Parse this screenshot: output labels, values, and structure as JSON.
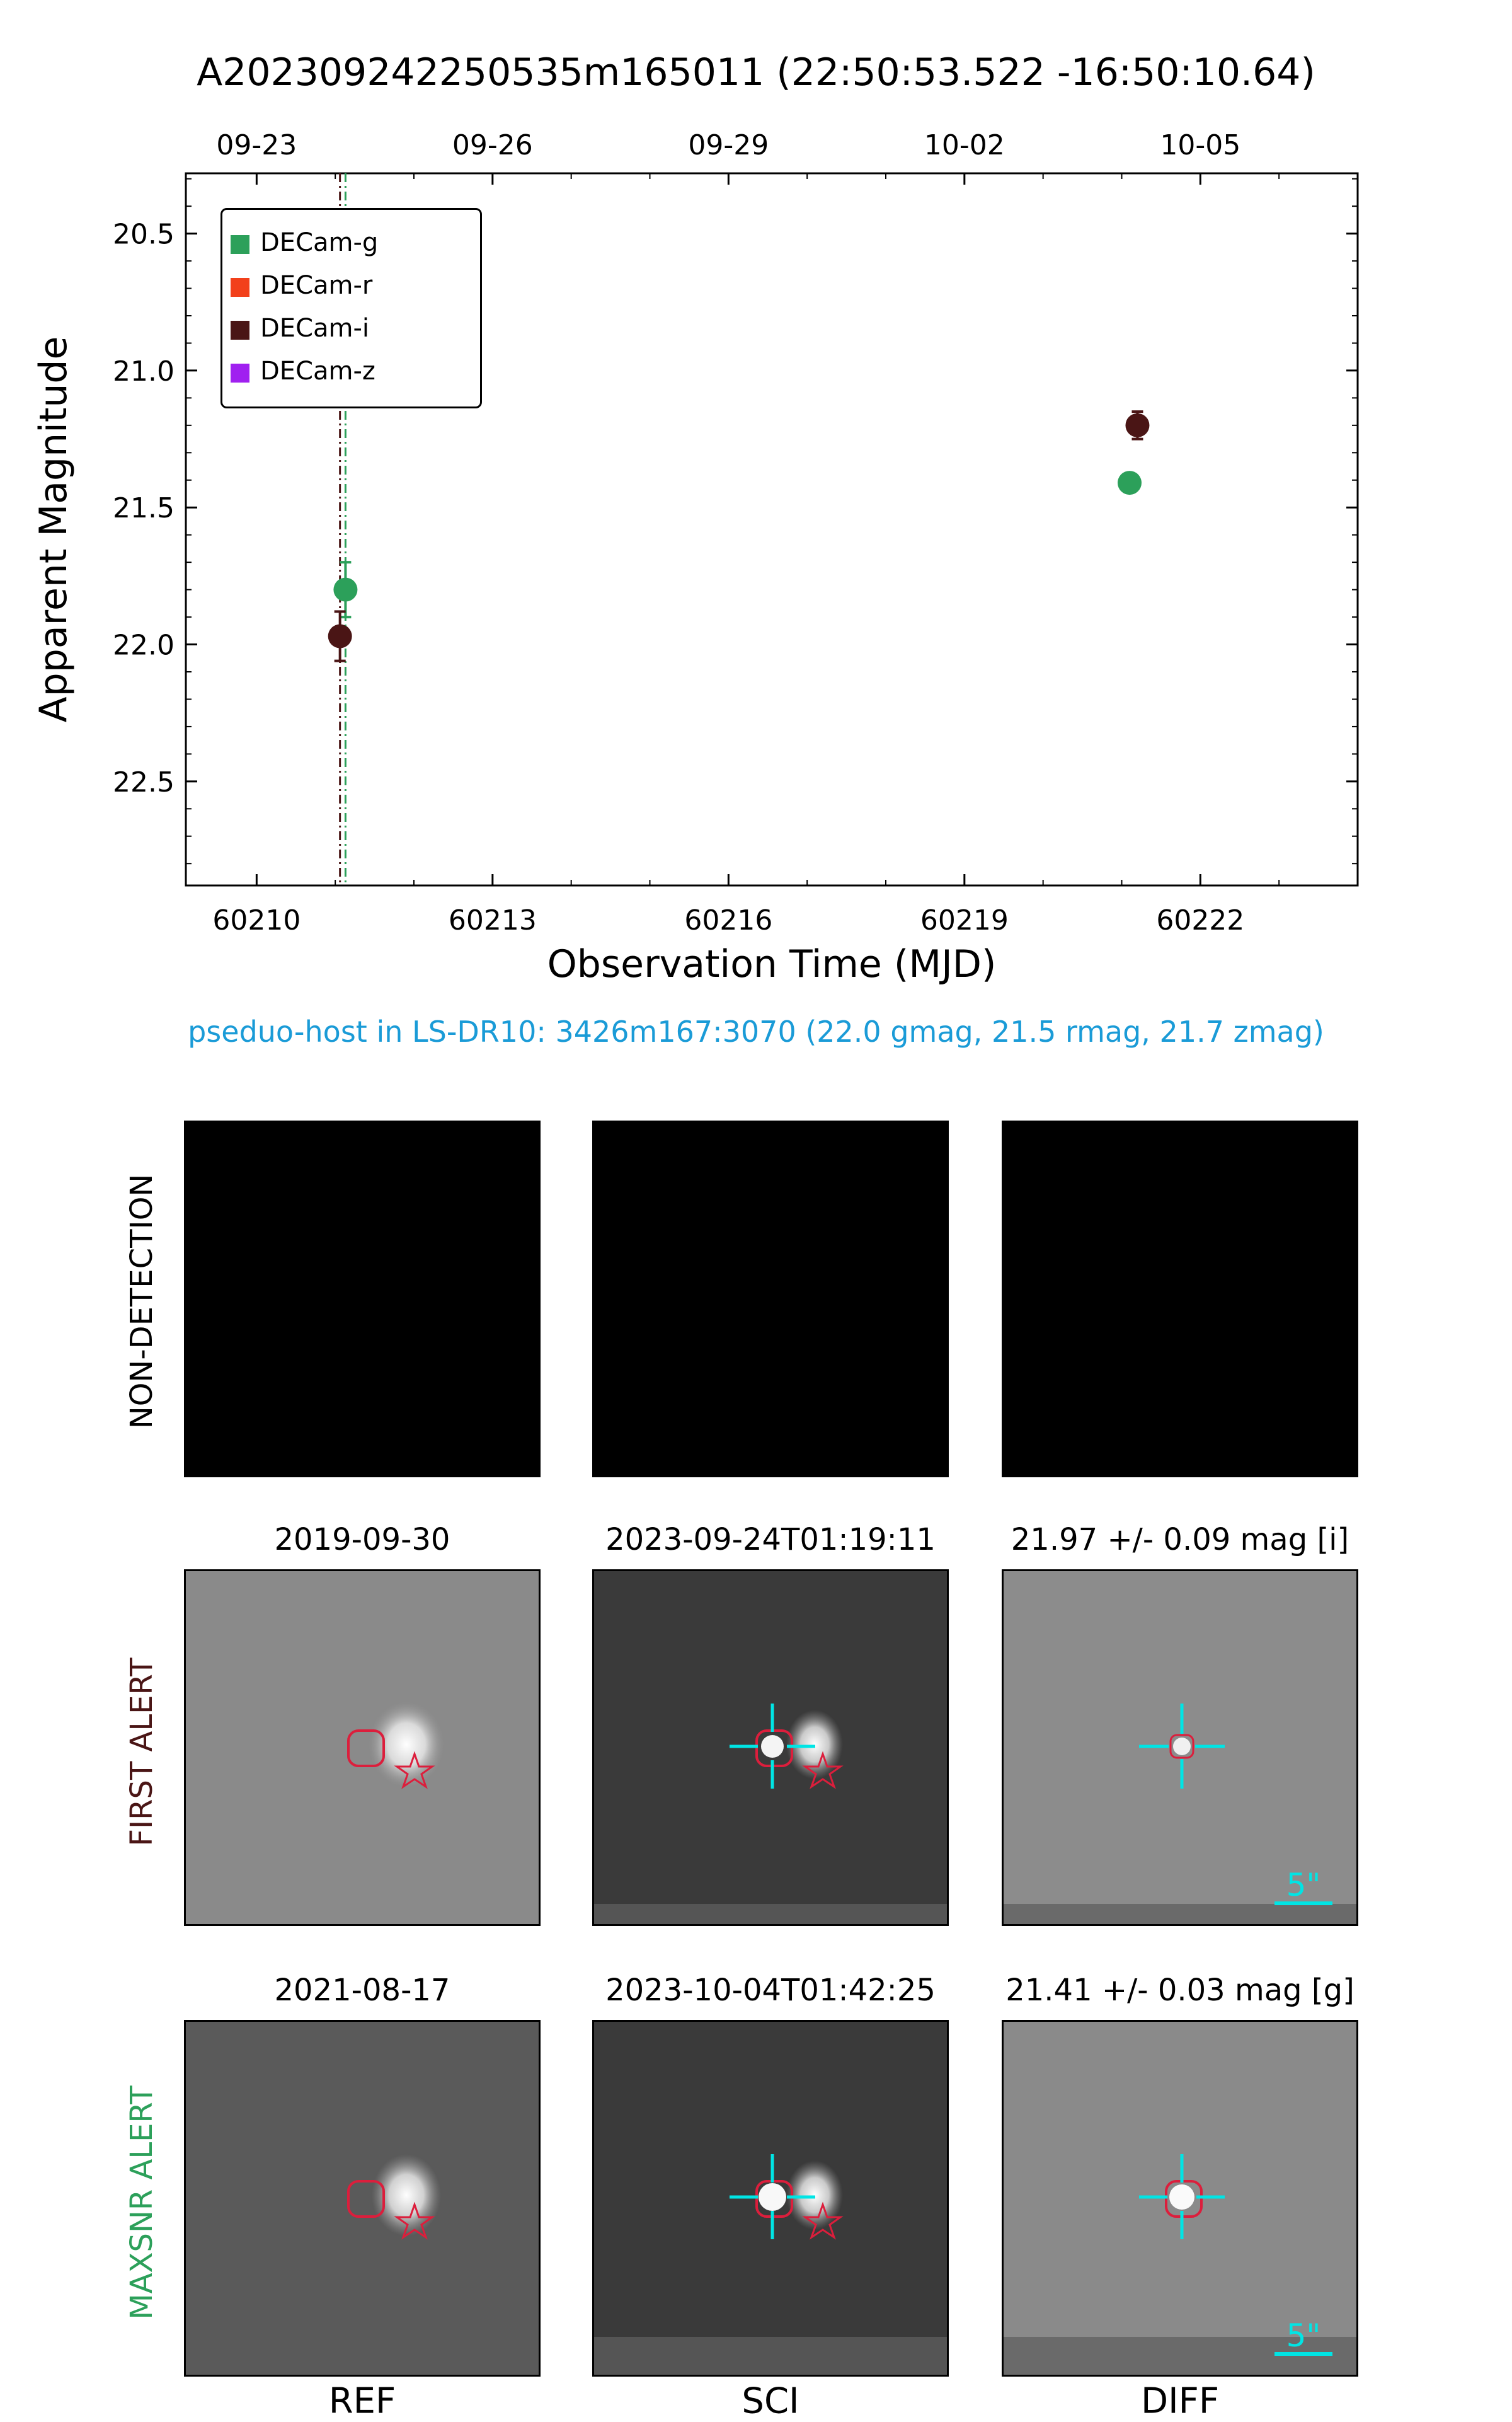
{
  "title": "A202309242250535m165011 (22:50:53.522 -16:50:10.64)",
  "host_text": "pseduo-host in LS-DR10: 3426m167:3070 (22.0 gmag, 21.5 rmag, 21.7 zmag)",
  "colors": {
    "g": "#2ca05a",
    "r": "#f2401b",
    "i": "#4a1515",
    "z": "#a020f0",
    "host": "#1a9bd7",
    "cross": "#00e5e5",
    "marker": "#dc1e3c"
  },
  "chart_data": {
    "type": "scatter",
    "xlabel": "Observation Time (MJD)",
    "ylabel": "Apparent Magnitude",
    "xlim": [
      60209.1,
      60224.0
    ],
    "ylim": [
      22.88,
      20.28
    ],
    "x_ticks": [
      "60210",
      "60213",
      "60216",
      "60219",
      "60222"
    ],
    "x_tick_values": [
      60210,
      60213,
      60216,
      60219,
      60222
    ],
    "y_ticks": [
      "20.5",
      "21.0",
      "21.5",
      "22.0",
      "22.5"
    ],
    "y_tick_values": [
      20.5,
      21.0,
      21.5,
      22.0,
      22.5
    ],
    "top_ticks": [
      "09-23",
      "09-26",
      "09-29",
      "10-02",
      "10-05"
    ],
    "top_tick_values": [
      60210.0,
      60213.0,
      60216.0,
      60219.0,
      60222.0
    ],
    "legend": [
      "DECam-g",
      "DECam-r",
      "DECam-i",
      "DECam-z"
    ],
    "series": [
      {
        "name": "DECam-g",
        "color_key": "g",
        "points": [
          {
            "x": 60211.13,
            "y": 21.8,
            "err": 0.1
          },
          {
            "x": 60221.1,
            "y": 21.41,
            "err": 0.03
          }
        ]
      },
      {
        "name": "DECam-i",
        "color_key": "i",
        "points": [
          {
            "x": 60211.06,
            "y": 21.97,
            "err": 0.09
          },
          {
            "x": 60221.2,
            "y": 21.2,
            "err": 0.05
          }
        ]
      }
    ],
    "vlines": [
      {
        "x": 60211.06,
        "color_key": "i"
      },
      {
        "x": 60211.13,
        "color_key": "g"
      }
    ]
  },
  "stamps": {
    "row_labels": [
      "NON-DETECTION",
      "FIRST ALERT",
      "MAXSNR ALERT"
    ],
    "col_labels": [
      "REF",
      "SCI",
      "DIFF"
    ],
    "first_titles": [
      "2019-09-30",
      "2023-09-24T01:19:11",
      "21.97 +/- 0.09 mag [i]"
    ],
    "max_titles": [
      "2021-08-17",
      "2023-10-04T01:42:25",
      "21.41 +/- 0.03 mag [g]"
    ],
    "scale_text": "5\""
  }
}
